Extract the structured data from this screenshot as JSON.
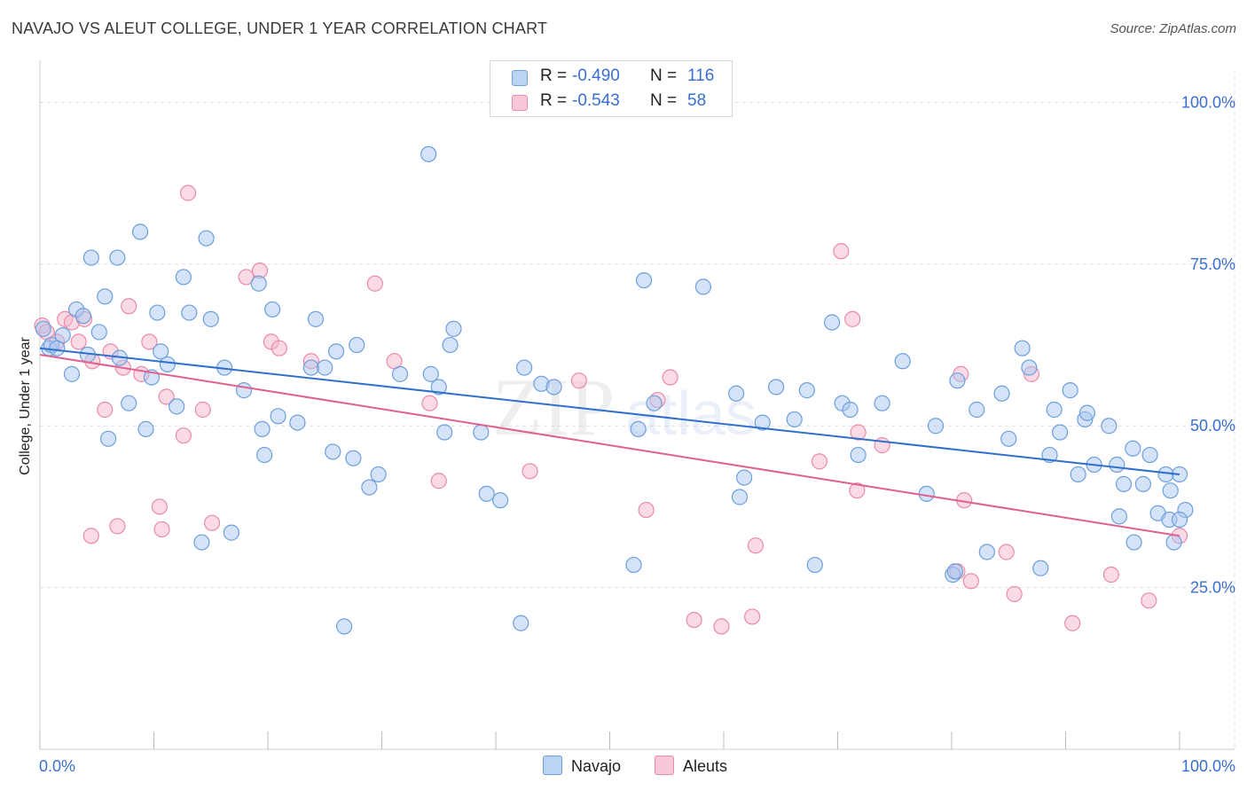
{
  "title": "NAVAJO VS ALEUT COLLEGE, UNDER 1 YEAR CORRELATION CHART",
  "source": "Source: ZipAtlas.com",
  "legend": {
    "r_label": "R =",
    "n_label": "N =",
    "navajo": {
      "r": "-0.490",
      "n": "116"
    },
    "aleuts": {
      "r": "-0.543",
      "n": "58"
    }
  },
  "bottom_legend": {
    "navajo": "Navajo",
    "aleuts": "Aleuts"
  },
  "colors": {
    "navajo_fill": "#a9c8f0",
    "navajo_stroke": "#6d9fdc",
    "navajo_line": "#2f6fce",
    "aleuts_fill": "#f5b8cc",
    "aleuts_stroke": "#e98aa9",
    "aleuts_line": "#e0608f",
    "tick_label": "#3a6fd1",
    "grid": "#dddddd"
  },
  "chart_data": {
    "type": "scatter",
    "title": "NAVAJO VS ALEUT COLLEGE, UNDER 1 YEAR CORRELATION CHART",
    "xlabel": "",
    "ylabel": "College, Under 1 year",
    "xlim": [
      0,
      100
    ],
    "ylim": [
      0,
      105
    ],
    "x_tick_labels": [
      "0.0%",
      "100.0%"
    ],
    "y_ticks": [
      25,
      50,
      75,
      100
    ],
    "y_tick_labels": [
      "25.0%",
      "50.0%",
      "75.0%",
      "100.0%"
    ],
    "grid": true,
    "watermark": "ZIPatlas",
    "series": [
      {
        "name": "Navajo",
        "trend": [
          [
            0,
            62.0
          ],
          [
            100,
            42.5
          ]
        ],
        "points": [
          [
            0.3,
            65
          ],
          [
            0.8,
            62
          ],
          [
            1.0,
            62.5
          ],
          [
            1.5,
            62
          ],
          [
            2,
            64
          ],
          [
            2.8,
            58
          ],
          [
            3.2,
            68
          ],
          [
            3.8,
            67
          ],
          [
            4.2,
            61
          ],
          [
            4.5,
            76
          ],
          [
            5.2,
            64.5
          ],
          [
            5.7,
            70
          ],
          [
            6,
            48
          ],
          [
            6.8,
            76
          ],
          [
            7,
            60.5
          ],
          [
            7.8,
            53.5
          ],
          [
            8.8,
            80
          ],
          [
            9.3,
            49.5
          ],
          [
            9.8,
            57.5
          ],
          [
            10.3,
            67.5
          ],
          [
            10.6,
            61.5
          ],
          [
            11.2,
            59.5
          ],
          [
            12.0,
            53
          ],
          [
            12.6,
            73
          ],
          [
            13.1,
            67.5
          ],
          [
            14.2,
            32
          ],
          [
            14.6,
            79
          ],
          [
            15.0,
            66.5
          ],
          [
            16.2,
            59
          ],
          [
            16.8,
            33.5
          ],
          [
            17.9,
            55.5
          ],
          [
            19.2,
            72
          ],
          [
            19.5,
            49.5
          ],
          [
            19.7,
            45.5
          ],
          [
            20.4,
            68
          ],
          [
            20.9,
            51.5
          ],
          [
            22.6,
            50.5
          ],
          [
            23.8,
            59
          ],
          [
            24.2,
            66.5
          ],
          [
            25.0,
            59
          ],
          [
            25.7,
            46
          ],
          [
            26.0,
            61.5
          ],
          [
            26.7,
            19
          ],
          [
            27.5,
            45
          ],
          [
            27.8,
            62.5
          ],
          [
            28.9,
            40.5
          ],
          [
            29.7,
            42.5
          ],
          [
            31.6,
            58
          ],
          [
            34.1,
            92
          ],
          [
            34.3,
            58
          ],
          [
            35.0,
            56
          ],
          [
            35.5,
            49
          ],
          [
            36.0,
            62.5
          ],
          [
            36.3,
            65
          ],
          [
            38.7,
            49
          ],
          [
            39.2,
            39.5
          ],
          [
            40.4,
            38.5
          ],
          [
            42.2,
            19.5
          ],
          [
            42.5,
            59
          ],
          [
            44.0,
            56.5
          ],
          [
            45.1,
            56
          ],
          [
            52.1,
            28.5
          ],
          [
            52.5,
            49.5
          ],
          [
            53.0,
            72.5
          ],
          [
            53.9,
            53.5
          ],
          [
            58.2,
            71.5
          ],
          [
            61.1,
            55
          ],
          [
            61.4,
            39
          ],
          [
            61.8,
            42
          ],
          [
            63.4,
            50.5
          ],
          [
            64.6,
            56
          ],
          [
            66.2,
            51
          ],
          [
            67.3,
            55.5
          ],
          [
            68.0,
            28.5
          ],
          [
            69.5,
            66
          ],
          [
            70.4,
            53.5
          ],
          [
            71.1,
            52.5
          ],
          [
            71.8,
            45.5
          ],
          [
            73.9,
            53.5
          ],
          [
            75.7,
            60
          ],
          [
            77.8,
            39.5
          ],
          [
            78.6,
            50
          ],
          [
            80.1,
            27
          ],
          [
            80.5,
            57
          ],
          [
            80.3,
            27.5
          ],
          [
            82.2,
            52.5
          ],
          [
            83.1,
            30.5
          ],
          [
            84.4,
            55
          ],
          [
            85.0,
            48
          ],
          [
            86.2,
            62
          ],
          [
            86.8,
            59
          ],
          [
            87.8,
            28
          ],
          [
            88.6,
            45.5
          ],
          [
            89.0,
            52.5
          ],
          [
            89.5,
            49
          ],
          [
            90.4,
            55.5
          ],
          [
            91.1,
            42.5
          ],
          [
            91.7,
            51
          ],
          [
            91.9,
            52
          ],
          [
            92.5,
            44
          ],
          [
            93.8,
            50
          ],
          [
            94.5,
            44
          ],
          [
            94.7,
            36
          ],
          [
            95.1,
            41
          ],
          [
            95.9,
            46.5
          ],
          [
            96.0,
            32
          ],
          [
            96.8,
            41
          ],
          [
            97.4,
            45.5
          ],
          [
            98.1,
            36.5
          ],
          [
            98.8,
            42.5
          ],
          [
            99.1,
            35.5
          ],
          [
            99.5,
            32
          ],
          [
            99.2,
            40
          ],
          [
            100.0,
            42.5
          ],
          [
            100.5,
            37
          ],
          [
            100.0,
            35.5
          ]
        ]
      },
      {
        "name": "Aleuts",
        "trend": [
          [
            0,
            61.0
          ],
          [
            100,
            33.0
          ]
        ],
        "points": [
          [
            0.2,
            65.5
          ],
          [
            0.6,
            64.5
          ],
          [
            1.5,
            63
          ],
          [
            2.2,
            66.5
          ],
          [
            2.8,
            66
          ],
          [
            3.4,
            63
          ],
          [
            3.9,
            66.5
          ],
          [
            4.5,
            33
          ],
          [
            4.6,
            60
          ],
          [
            5.7,
            52.5
          ],
          [
            6.2,
            61.5
          ],
          [
            6.8,
            34.5
          ],
          [
            7.3,
            59
          ],
          [
            7.8,
            68.5
          ],
          [
            8.9,
            58
          ],
          [
            9.6,
            63
          ],
          [
            10.5,
            37.5
          ],
          [
            10.7,
            34
          ],
          [
            11.1,
            54.5
          ],
          [
            12.6,
            48.5
          ],
          [
            13.0,
            86
          ],
          [
            14.3,
            52.5
          ],
          [
            15.1,
            35
          ],
          [
            18.1,
            73
          ],
          [
            19.3,
            74
          ],
          [
            20.3,
            63
          ],
          [
            21.0,
            62
          ],
          [
            23.8,
            60
          ],
          [
            29.4,
            72
          ],
          [
            31.1,
            60
          ],
          [
            34.2,
            53.5
          ],
          [
            35.0,
            41.5
          ],
          [
            43.0,
            43
          ],
          [
            47.3,
            57
          ],
          [
            53.2,
            37
          ],
          [
            54.2,
            54
          ],
          [
            55.3,
            57.5
          ],
          [
            57.4,
            20
          ],
          [
            59.8,
            19
          ],
          [
            62.5,
            20.5
          ],
          [
            62.8,
            31.5
          ],
          [
            68.4,
            44.5
          ],
          [
            70.3,
            77
          ],
          [
            71.3,
            66.5
          ],
          [
            71.7,
            40
          ],
          [
            71.8,
            49
          ],
          [
            73.9,
            47
          ],
          [
            80.5,
            27.5
          ],
          [
            80.8,
            58
          ],
          [
            81.1,
            38.5
          ],
          [
            81.7,
            26
          ],
          [
            84.8,
            30.5
          ],
          [
            85.5,
            24
          ],
          [
            87.0,
            58
          ],
          [
            90.6,
            19.5
          ],
          [
            94.0,
            27
          ],
          [
            97.3,
            23
          ],
          [
            100.0,
            33
          ]
        ]
      }
    ]
  }
}
